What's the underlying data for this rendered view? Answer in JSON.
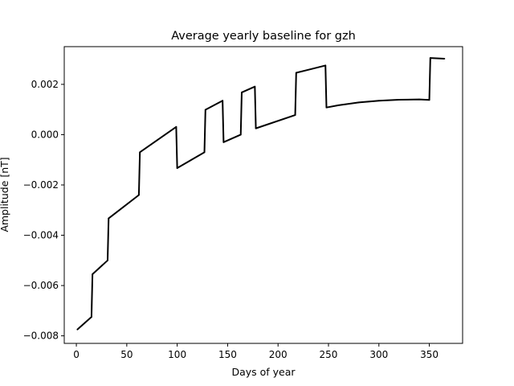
{
  "chart_data": {
    "type": "line",
    "title": "Average yearly baseline for gzh",
    "xlabel": "Days of year",
    "ylabel": "Amplitude [nT]",
    "xlim": [
      -12,
      383
    ],
    "ylim": [
      -0.0083,
      0.0035
    ],
    "xticks": [
      0,
      50,
      100,
      150,
      200,
      250,
      300,
      350
    ],
    "yticks": [
      -0.008,
      -0.006,
      -0.004,
      -0.002,
      0.0,
      0.002
    ],
    "xtick_labels": [
      "0",
      "50",
      "100",
      "150",
      "200",
      "250",
      "300",
      "350"
    ],
    "ytick_labels": [
      "−0.008",
      "−0.006",
      "−0.004",
      "−0.002",
      "0.000",
      "0.002"
    ],
    "grid": false,
    "series": [
      {
        "color": "#000000",
        "x": [
          1,
          15,
          16,
          31,
          32,
          62,
          63,
          99,
          100,
          127,
          128,
          145,
          146,
          163,
          164,
          177,
          178,
          217,
          218,
          247,
          248,
          260,
          280,
          300,
          320,
          340,
          350,
          351,
          365
        ],
        "y": [
          -0.00775,
          -0.00725,
          -0.00555,
          -0.005,
          -0.00333,
          -0.0024,
          -0.0007,
          0.00031,
          -0.00133,
          -0.0007,
          0.00099,
          0.00135,
          -0.0003,
          0.0,
          0.00168,
          0.00191,
          0.00025,
          0.00078,
          0.00246,
          0.00275,
          0.00108,
          0.00117,
          0.00128,
          0.00135,
          0.00139,
          0.0014,
          0.00138,
          0.00305,
          0.00302
        ]
      }
    ]
  }
}
